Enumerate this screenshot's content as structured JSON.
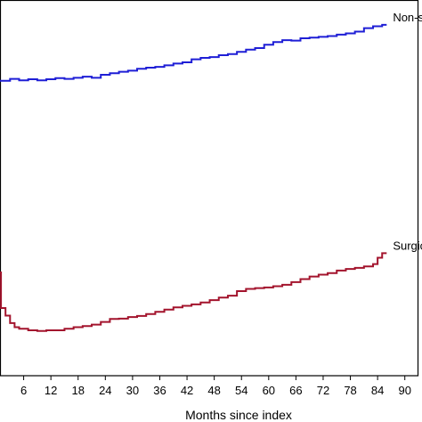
{
  "chart_data": {
    "type": "line",
    "step": true,
    "title": "",
    "xlabel": "Months since index",
    "ylabel": "",
    "xlim": [
      0,
      93
    ],
    "ylim": [
      0,
      100
    ],
    "x_ticks": [
      6,
      12,
      18,
      24,
      30,
      36,
      42,
      48,
      54,
      60,
      66,
      72,
      78,
      84,
      90
    ],
    "x_tick_labels": [
      "6",
      "12",
      "18",
      "24",
      "30",
      "36",
      "42",
      "48",
      "54",
      "60",
      "66",
      "72",
      "78",
      "84",
      "90"
    ],
    "grid": false,
    "legend": "none",
    "series": [
      {
        "name": "Non-su",
        "color": "#1f1fd6",
        "x": [
          0,
          1,
          3,
          5,
          7,
          9,
          11,
          13,
          15,
          17,
          19,
          21,
          23,
          25,
          27,
          29,
          31,
          33,
          35,
          37,
          39,
          41,
          43,
          45,
          47,
          49,
          51,
          53,
          55,
          57,
          59,
          61,
          63,
          65,
          67,
          69,
          71,
          73,
          75,
          77,
          79,
          81,
          83,
          85,
          86
        ],
        "y": [
          78.5,
          78.5,
          79,
          78.6,
          78.9,
          78.6,
          78.9,
          79.2,
          79,
          79.3,
          79.6,
          79.3,
          80.1,
          80.5,
          80.9,
          81.2,
          81.7,
          82,
          82.2,
          82.6,
          83.1,
          83.4,
          84.2,
          84.6,
          84.8,
          85.3,
          85.6,
          86.2,
          86.8,
          87.2,
          88.1,
          88.8,
          89.3,
          89.2,
          89.8,
          90,
          90.2,
          90.4,
          90.8,
          91.1,
          91.6,
          92.5,
          93,
          93.4,
          93.4
        ]
      },
      {
        "name": "Surgica",
        "color": "#a3142d",
        "x": [
          0,
          1,
          2,
          3,
          4,
          5,
          7,
          9,
          11,
          13,
          15,
          17,
          19,
          21,
          23,
          25,
          27,
          29,
          31,
          33,
          35,
          37,
          39,
          41,
          43,
          45,
          47,
          49,
          51,
          53,
          55,
          57,
          59,
          61,
          63,
          65,
          67,
          69,
          71,
          73,
          75,
          77,
          79,
          81,
          83,
          84,
          85,
          86
        ],
        "y": [
          27.5,
          18,
          16,
          14,
          12.9,
          12.5,
          12.1,
          11.9,
          12.1,
          12.1,
          12.5,
          12.9,
          13.2,
          13.6,
          14.3,
          15.1,
          15.2,
          15.6,
          15.9,
          16.4,
          17,
          17.6,
          18.2,
          18.6,
          19,
          19.5,
          20.1,
          20.8,
          21.3,
          22.5,
          23.1,
          23.3,
          23.5,
          23.8,
          24.2,
          24.9,
          25.7,
          26.4,
          26.9,
          27.3,
          28,
          28.4,
          28.7,
          29.1,
          29.7,
          31.4,
          32.6,
          32.6
        ]
      }
    ],
    "series_labels": [
      "Non-su",
      "Surgica"
    ]
  }
}
